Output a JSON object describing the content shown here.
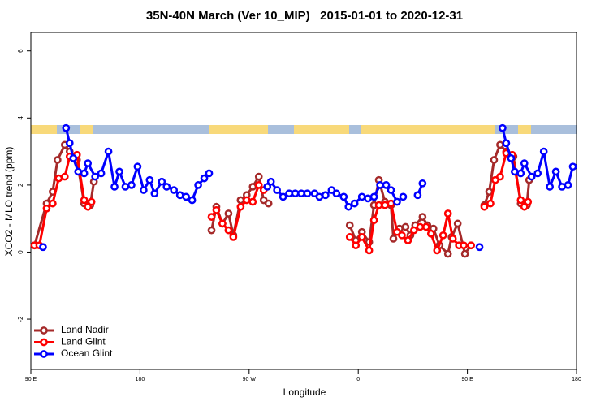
{
  "chart_data": {
    "type": "line",
    "title": "35N-40N March (Ver 10_MIP)   2015-01-01 to 2020-12-31",
    "x_label": "Longitude",
    "y_label": "XCO2 - MLO trend (ppm)",
    "xlim": [
      90,
      540
    ],
    "ylim": [
      -3.5,
      6.55
    ],
    "xticks": [
      {
        "value": 90,
        "label": "90 E"
      },
      {
        "value": 180,
        "label": "180"
      },
      {
        "value": 270,
        "label": "90 W"
      },
      {
        "value": 360,
        "label": "0"
      },
      {
        "value": 450,
        "label": "90 E"
      },
      {
        "value": 540,
        "label": "180"
      }
    ],
    "yticks": [
      -2,
      0,
      2,
      4,
      6
    ],
    "legend": "bottomleft",
    "series": [
      {
        "name": "Land Nadir",
        "color": "#a52a2a",
        "x": [
          93,
          103,
          108,
          112,
          118,
          122,
          128,
          134,
          139,
          142,
          190,
          239,
          243,
          248,
          253,
          257,
          263,
          268,
          273,
          278,
          282,
          286,
          320,
          353,
          358,
          363,
          369,
          373,
          377,
          382,
          387,
          389,
          394,
          399,
          403,
          407,
          413,
          417,
          422,
          427,
          434,
          437,
          442,
          448,
          453,
          458,
          464,
          468,
          472,
          477,
          482,
          488,
          494,
          499,
          501
        ],
        "values": [
          0.2,
          1.45,
          1.8,
          2.75,
          3.2,
          3.0,
          2.75,
          1.45,
          1.4,
          2.1,
          null,
          0.65,
          1.35,
          0.85,
          1.15,
          0.5,
          1.55,
          1.7,
          1.95,
          2.25,
          1.55,
          1.45,
          null,
          0.8,
          0.35,
          0.6,
          0.3,
          1.4,
          2.15,
          1.5,
          1.4,
          0.4,
          0.7,
          0.75,
          0.5,
          0.8,
          1.05,
          0.8,
          0.7,
          0.2,
          -0.05,
          0.45,
          0.85,
          -0.05,
          0.2,
          null,
          1.4,
          1.8,
          2.75,
          3.2,
          3.0,
          2.85,
          1.45,
          1.4,
          2.15
        ]
      },
      {
        "name": "Land Glint",
        "color": "#ff0000",
        "x": [
          93,
          97,
          103,
          108,
          113,
          118,
          122,
          128,
          134,
          137,
          140,
          190,
          239,
          243,
          248,
          253,
          257,
          263,
          268,
          273,
          278,
          282,
          320,
          353,
          358,
          363,
          369,
          373,
          377,
          382,
          387,
          392,
          396,
          401,
          406,
          411,
          416,
          420,
          425,
          430,
          434,
          438,
          443,
          447,
          453,
          458,
          464,
          469,
          473,
          477,
          482,
          487,
          494,
          497,
          500
        ],
        "values": [
          0.2,
          0.2,
          1.3,
          1.45,
          2.2,
          2.25,
          2.85,
          2.9,
          1.55,
          1.35,
          1.5,
          null,
          1.05,
          1.25,
          0.85,
          0.65,
          0.45,
          1.35,
          1.55,
          1.5,
          2.0,
          1.85,
          null,
          0.45,
          0.2,
          0.45,
          0.05,
          0.95,
          1.4,
          1.4,
          1.45,
          0.6,
          0.5,
          0.35,
          0.65,
          0.75,
          0.75,
          0.55,
          0.05,
          0.5,
          1.15,
          0.4,
          0.2,
          0.2,
          0.2,
          null,
          1.35,
          1.45,
          2.15,
          2.25,
          2.95,
          2.9,
          1.55,
          1.35,
          1.5
        ]
      },
      {
        "name": "Ocean Glint",
        "color": "#0000ff",
        "x": [
          100,
          110,
          119,
          122,
          125,
          129,
          134,
          137,
          143,
          148,
          154,
          159,
          163,
          168,
          173,
          178,
          183,
          188,
          192,
          198,
          202,
          208,
          213,
          218,
          223,
          228,
          233,
          237,
          260,
          285,
          288,
          293,
          298,
          303,
          308,
          313,
          318,
          324,
          328,
          333,
          338,
          342,
          348,
          352,
          357,
          363,
          368,
          373,
          378,
          383,
          387,
          392,
          397,
          405,
          409,
          413,
          440,
          460,
          470,
          479,
          482,
          486,
          489,
          494,
          497,
          503,
          508,
          513,
          518,
          523,
          528,
          533,
          537
        ],
        "values": [
          0.15,
          null,
          3.7,
          3.25,
          2.8,
          2.4,
          2.35,
          2.65,
          2.25,
          2.35,
          3.0,
          1.95,
          2.4,
          1.95,
          2.0,
          2.55,
          1.85,
          2.15,
          1.75,
          2.1,
          1.95,
          1.85,
          1.7,
          1.65,
          1.55,
          2.0,
          2.2,
          2.35,
          null,
          1.95,
          2.1,
          1.85,
          1.65,
          1.75,
          1.75,
          1.75,
          1.75,
          1.75,
          1.65,
          1.7,
          1.85,
          1.75,
          1.65,
          1.35,
          1.45,
          1.65,
          1.6,
          1.65,
          2.0,
          2.0,
          1.85,
          1.5,
          1.65,
          null,
          1.7,
          2.05,
          null,
          0.15,
          null,
          3.7,
          3.25,
          2.8,
          2.4,
          2.35,
          2.65,
          2.25,
          2.35,
          3.0,
          1.95,
          2.4,
          1.95,
          2.0,
          2.55
        ]
      }
    ]
  }
}
